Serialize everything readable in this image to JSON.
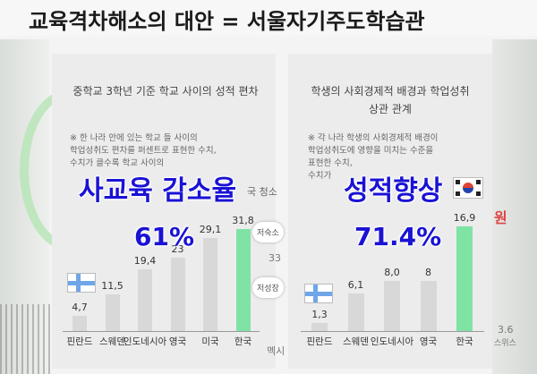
{
  "title": "교육격차해소의 대안 = 서울자기주도학습관",
  "left_chart": {
    "title": "중학교 3학년 기준 학교 사이의 성적 편차",
    "note_lines": [
      "※ 한 나라 안에 있는 학교 들 사이의",
      "학업성취도 편차를 퍼센트로 표현한 수치,",
      "수치가 클수록 학교 사이의"
    ],
    "overlay_label": "사교육 감소율",
    "overlay_pct": "61%",
    "partial_text": "국 청소",
    "badges": [
      "저숙소",
      "저성장"
    ],
    "side_value": "33",
    "side_cat": "멕시",
    "categories": [
      "핀란드",
      "스웨덴",
      "인도네시아",
      "영국",
      "미국",
      "한국"
    ],
    "values": [
      "4,7",
      "11,5",
      "19,4",
      "23",
      "29,1",
      "31,8"
    ]
  },
  "right_chart": {
    "title_lines": [
      "학생의 사회경제적 배경과 학업성취",
      "상관 관계"
    ],
    "note_lines": [
      "※ 각 나라 학생의 사회경제적 배경이",
      "학업성취도에 영향을 미치는 수준을",
      "표현한 수치,",
      "수치가"
    ],
    "overlay_label": "성적향상",
    "overlay_pct": "71.4%",
    "side_red": "원",
    "side_value": "3.6",
    "side_cat": "스위스",
    "categories": [
      "핀란드",
      "스웨덴",
      "인도네시아",
      "영국",
      "한국"
    ],
    "values": [
      "1,3",
      "6,1",
      "8,0",
      "8",
      "16,9"
    ]
  },
  "chart_data": [
    {
      "type": "bar",
      "title": "중학교 3학년 기준 학교 사이의 성적 편차",
      "categories": [
        "핀란드",
        "스웨덴",
        "인도네시아",
        "영국",
        "미국",
        "한국"
      ],
      "values": [
        4.7,
        11.5,
        19.4,
        23,
        29.1,
        31.8
      ],
      "highlight": "한국",
      "highlight_color": "#7fe3a6",
      "bar_color": "#d8d8d8",
      "ylim": [
        0,
        35
      ]
    },
    {
      "type": "bar",
      "title": "학생의 사회경제적 배경과 학업성취 상관 관계",
      "categories": [
        "핀란드",
        "스웨덴",
        "인도네시아",
        "영국",
        "한국"
      ],
      "values": [
        1.3,
        6.1,
        8.0,
        8,
        16.9
      ],
      "highlight": "한국",
      "highlight_color": "#7fe3a6",
      "bar_color": "#d8d8d8",
      "ylim": [
        0,
        18
      ]
    }
  ],
  "colors": {
    "overlay_text": "#1a12d4",
    "highlight_bar": "#7fe3a6",
    "finland_blue": "#6ea6e8"
  }
}
